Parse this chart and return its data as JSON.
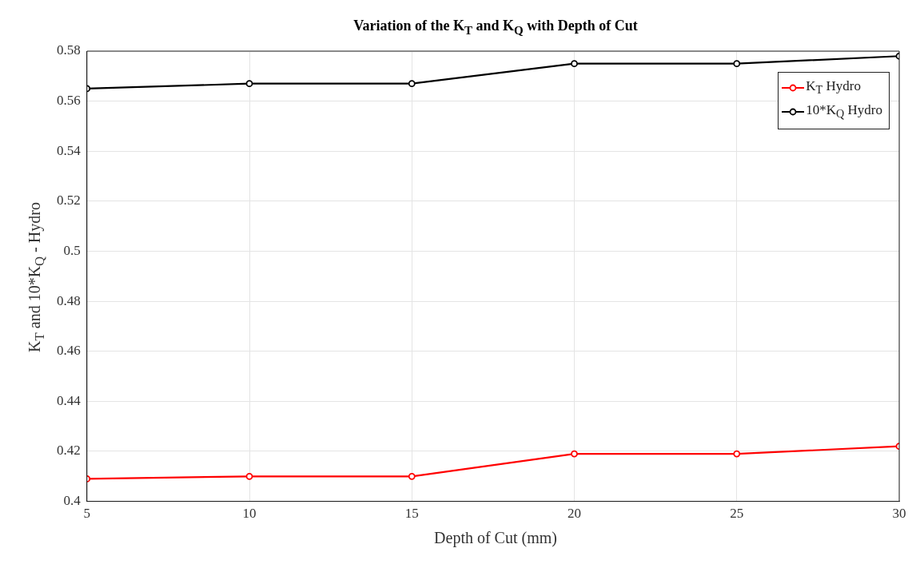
{
  "chart_data": {
    "type": "line",
    "title": "Variation of the K$_{T}$ and K$_{Q}$ with Depth of Cut",
    "xlabel": "Depth of Cut (mm)",
    "ylabel": "K$_{T}$ and 10*K$_{Q}$ - Hydro",
    "x": [
      5,
      10,
      15,
      20,
      25,
      30
    ],
    "series": [
      {
        "name": "K$_{T}$ Hydro",
        "color": "#ff0000",
        "values": [
          0.409,
          0.41,
          0.41,
          0.419,
          0.419,
          0.422
        ]
      },
      {
        "name": "10*K$_{Q}$ Hydro",
        "color": "#000000",
        "values": [
          0.565,
          0.567,
          0.567,
          0.575,
          0.575,
          0.578
        ]
      }
    ],
    "xlim": [
      5,
      30
    ],
    "xticks": [
      5,
      10,
      15,
      20,
      25,
      30
    ],
    "ylim": [
      0.4,
      0.58
    ],
    "yticks": [
      0.4,
      0.42,
      0.44,
      0.46,
      0.48,
      0.5,
      0.52,
      0.54,
      0.56,
      0.58
    ],
    "grid": true,
    "legend": "top right",
    "marker": "circle",
    "line_style": "solid"
  }
}
